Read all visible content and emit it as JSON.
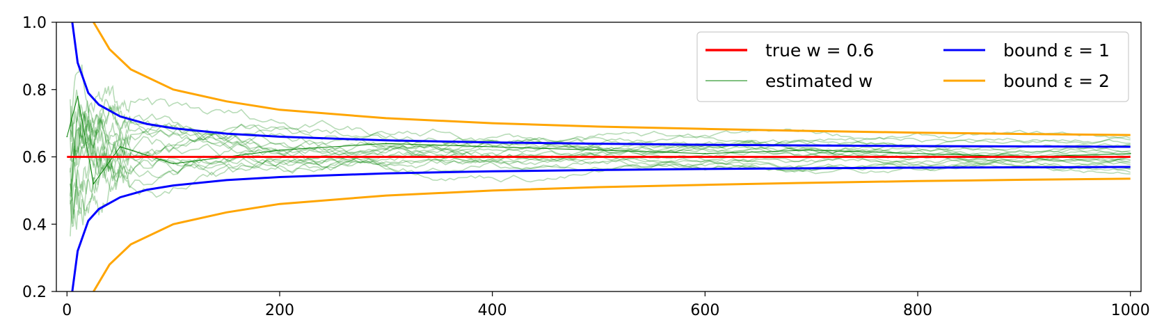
{
  "chart_data": {
    "type": "line",
    "title": "",
    "xlabel": "",
    "ylabel": "",
    "xlim": [
      -10,
      1010
    ],
    "ylim": [
      0.2,
      1.0
    ],
    "xticks": [
      0,
      200,
      400,
      600,
      800,
      1000
    ],
    "xtick_labels": [
      "0",
      "200",
      "400",
      "600",
      "800",
      "1000"
    ],
    "yticks": [
      0.2,
      0.4,
      0.6,
      0.8,
      1.0
    ],
    "ytick_labels": [
      "0.2",
      "0.4",
      "0.6",
      "0.8",
      "1.0"
    ],
    "grid": false,
    "legend_position": "top-right",
    "legend_columns": 2,
    "series": [
      {
        "name": "true w = 0.6",
        "color": "#ff0000",
        "x": [
          0,
          1000
        ],
        "y": [
          0.6,
          0.6
        ]
      },
      {
        "name": "estimated w",
        "color": "#008000",
        "x": [
          0,
          10,
          25,
          50,
          100,
          200,
          300,
          400,
          500,
          600,
          700,
          800,
          900,
          1000
        ],
        "y": [
          0.66,
          0.78,
          0.52,
          0.63,
          0.58,
          0.62,
          0.64,
          0.63,
          0.62,
          0.61,
          0.62,
          0.61,
          0.6,
          0.61
        ]
      },
      {
        "name": "bound ε = 1",
        "color": "#0000ff",
        "x": [
          5,
          10,
          20,
          30,
          50,
          75,
          100,
          150,
          200,
          300,
          400,
          500,
          600,
          700,
          800,
          900,
          1000
        ],
        "y_upper": [
          1.0,
          0.88,
          0.79,
          0.755,
          0.72,
          0.698,
          0.685,
          0.669,
          0.66,
          0.649,
          0.643,
          0.639,
          0.636,
          0.634,
          0.632,
          0.631,
          0.63
        ],
        "y_lower": [
          0.2,
          0.32,
          0.41,
          0.445,
          0.48,
          0.502,
          0.515,
          0.531,
          0.54,
          0.551,
          0.557,
          0.561,
          0.564,
          0.566,
          0.568,
          0.569,
          0.57
        ]
      },
      {
        "name": "bound ε = 2",
        "color": "#ffa500",
        "x": [
          25,
          40,
          60,
          100,
          150,
          200,
          300,
          400,
          500,
          600,
          700,
          800,
          900,
          1000
        ],
        "y_upper": [
          1.0,
          0.92,
          0.86,
          0.8,
          0.765,
          0.74,
          0.715,
          0.7,
          0.69,
          0.683,
          0.677,
          0.672,
          0.668,
          0.665
        ],
        "y_lower": [
          0.2,
          0.28,
          0.34,
          0.4,
          0.435,
          0.46,
          0.485,
          0.5,
          0.51,
          0.517,
          0.523,
          0.528,
          0.532,
          0.535
        ]
      }
    ]
  }
}
